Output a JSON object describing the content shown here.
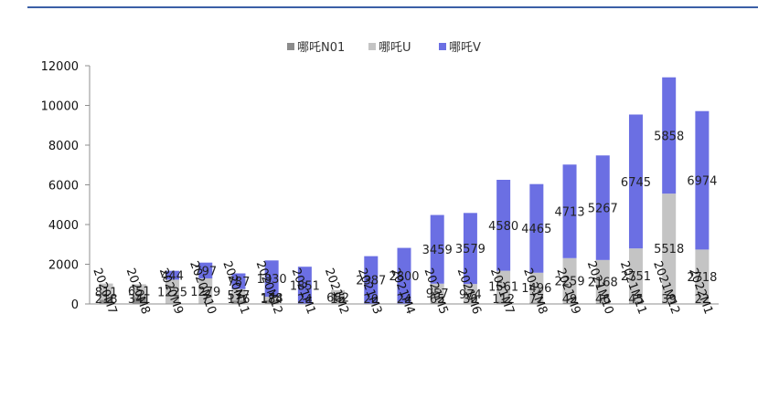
{
  "colors": {
    "top_rule": "#3b5fa6",
    "axis": "#8f8f8f",
    "background": "#ffffff"
  },
  "chart_data": {
    "type": "bar",
    "stacked": true,
    "categories": [
      "2020M7",
      "2020M8",
      "2020M9",
      "2020M10",
      "2020M11",
      "2020M12",
      "2021M1",
      "2021M2",
      "2021M3",
      "2021M4",
      "2021M5",
      "2021M6",
      "2021M7",
      "2021M8",
      "2021M9",
      "2021M10",
      "2021M11",
      "2021M12",
      "2022M1"
    ],
    "series": [
      {
        "name": "哪吒N01",
        "color": "#8c8c8c",
        "values": [
          218,
          341,
          0,
          7,
          176,
          184,
          24,
          15,
          20,
          24,
          65,
          30,
          112,
          77,
          49,
          46,
          45,
          39,
          22
        ],
        "labels": [
          "218",
          "341",
          "",
          "7",
          "176",
          "184",
          "24",
          "15",
          "20",
          "24",
          "65",
          "30",
          "112",
          "77",
          "49",
          "46",
          "45",
          "39",
          "22"
        ]
      },
      {
        "name": "哪吒U",
        "color": "#c4c4c4",
        "values": [
          811,
          651,
          1225,
          1279,
          577,
          178,
          0,
          682,
          0,
          0,
          957,
          974,
          1561,
          1496,
          2259,
          2168,
          2751,
          5518,
          2718
        ],
        "labels": [
          "811",
          "651",
          "1225",
          "1279",
          "577",
          "178",
          "",
          "682",
          "",
          "",
          "957",
          "974",
          "1561",
          "1496",
          "2259",
          "2168",
          "2751",
          "5518",
          "2718"
        ]
      },
      {
        "name": "哪吒V",
        "color": "#6b6fe3",
        "values": [
          0,
          0,
          444,
          797,
          787,
          1830,
          1851,
          0,
          2387,
          2800,
          3459,
          3579,
          4580,
          4465,
          4713,
          5267,
          6745,
          5858,
          6974
        ],
        "labels": [
          "",
          "",
          "444",
          "797",
          "787",
          "1830",
          "1851",
          "",
          "2387",
          "2800",
          "3459",
          "3579",
          "4580",
          "4465",
          "4713",
          "5267",
          "6745",
          "5858",
          "6974"
        ]
      }
    ],
    "yticks": [
      "0",
      "2000",
      "4000",
      "6000",
      "8000",
      "10000",
      "12000"
    ],
    "ylim": [
      0,
      12000
    ],
    "legend_position": "top-center",
    "grid": false
  }
}
